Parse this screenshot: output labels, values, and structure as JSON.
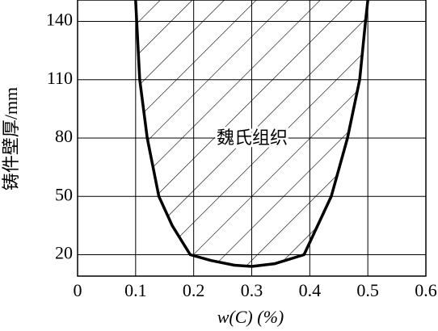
{
  "chart_data": {
    "type": "line",
    "xlabel": "w(C) (%)",
    "ylabel": "铸件壁厚/mm",
    "annotation": "魏氏组织",
    "x": [
      0.1,
      0.107,
      0.12,
      0.14,
      0.163,
      0.194,
      0.23,
      0.27,
      0.3,
      0.34,
      0.39,
      0.437,
      0.465,
      0.486,
      0.496,
      0.5
    ],
    "values": [
      151,
      110,
      80,
      50,
      35,
      20,
      17,
      14.6,
      14,
      15.4,
      20,
      50,
      80,
      110,
      140,
      151
    ],
    "color": "#000000",
    "hatch": true,
    "xlim": [
      0,
      0.6
    ],
    "xticks": [
      0,
      0.1,
      0.2,
      0.3,
      0.4,
      0.5,
      0.6
    ],
    "ylim": [
      9,
      151
    ],
    "yticks": [
      20,
      50,
      80,
      110,
      140
    ],
    "grid": true
  }
}
